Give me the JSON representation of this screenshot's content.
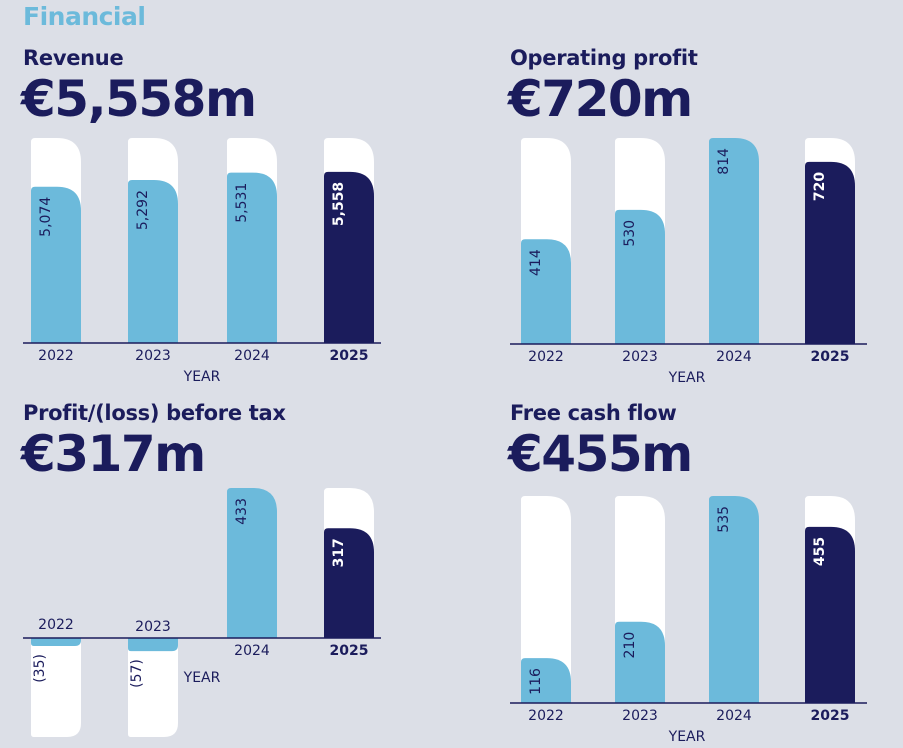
{
  "section_title": "Financial",
  "colors": {
    "background": "#dcdfe7",
    "bar_prior": "#6cbadb",
    "bar_current": "#1b1c5c",
    "track": "#ffffff",
    "text": "#1b1c5c",
    "accent": "#6cbadb"
  },
  "chart_data": [
    {
      "type": "bar",
      "id": "revenue",
      "title": "Revenue",
      "headline": "€5,558m",
      "xlabel": "YEAR",
      "ylabel": "",
      "categories": [
        "2022",
        "2023",
        "2024",
        "2025"
      ],
      "values": [
        5074,
        5292,
        5531,
        5558
      ],
      "value_labels": [
        "5,074",
        "5,292",
        "5,531",
        "5,558"
      ],
      "highlight_category": "2025",
      "grid": false
    },
    {
      "type": "bar",
      "id": "operating-profit",
      "title": "Operating profit",
      "headline": "€720m",
      "xlabel": "YEAR",
      "ylabel": "",
      "categories": [
        "2022",
        "2023",
        "2024",
        "2025"
      ],
      "values": [
        414,
        530,
        814,
        720
      ],
      "value_labels": [
        "414",
        "530",
        "814",
        "720"
      ],
      "highlight_category": "2025",
      "grid": false
    },
    {
      "type": "bar",
      "id": "profit-before-tax",
      "title": "Profit/(loss) before tax",
      "headline": "€317m",
      "xlabel": "YEAR",
      "ylabel": "",
      "categories": [
        "2022",
        "2023",
        "2024",
        "2025"
      ],
      "values": [
        -35,
        -57,
        433,
        317
      ],
      "value_labels": [
        "(35)",
        "(57)",
        "433",
        "317"
      ],
      "highlight_category": "2025",
      "grid": false
    },
    {
      "type": "bar",
      "id": "free-cash-flow",
      "title": "Free cash flow",
      "headline": "€455m",
      "xlabel": "YEAR",
      "ylabel": "",
      "categories": [
        "2022",
        "2023",
        "2024",
        "2025"
      ],
      "values": [
        116,
        210,
        535,
        455
      ],
      "value_labels": [
        "116",
        "210",
        "535",
        "455"
      ],
      "highlight_category": "2025",
      "grid": false
    }
  ]
}
